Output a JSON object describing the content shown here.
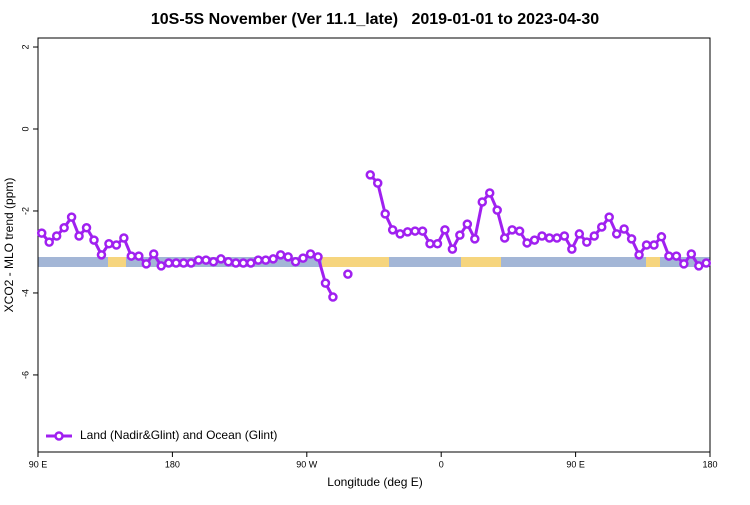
{
  "chart_data": {
    "type": "line",
    "title": "10S-5S November (Ver 11.1_late)   2019-01-01 to 2023-04-30",
    "x_label": "Longitude (deg E)",
    "y_label": "XCO2 - MLO trend (ppm)",
    "x": [
      92.5,
      97.5,
      102.5,
      107.5,
      112.5,
      117.5,
      122.5,
      127.5,
      132.5,
      137.5,
      142.5,
      147.5,
      152.5,
      157.5,
      162.5,
      167.5,
      172.5,
      177.5,
      182.5,
      187.5,
      192.5,
      197.5,
      202.5,
      207.5,
      212.5,
      217.5,
      222.5,
      227.5,
      232.5,
      237.5,
      242.5,
      247.5,
      252.5,
      257.5,
      262.5,
      267.5,
      272.5,
      277.5,
      282.5,
      287.5,
      292.5,
      297.5,
      302.5,
      307.5,
      312.5,
      317.5,
      322.5,
      327.5,
      332.5,
      337.5,
      342.5,
      347.5,
      352.5,
      357.5,
      362.5,
      367.5,
      372.5,
      377.5,
      382.5,
      387.5,
      392.5,
      397.5,
      402.5,
      407.5,
      412.5,
      417.5,
      422.5,
      427.5,
      432.5,
      437.5,
      442.5,
      447.5,
      452.5,
      457.5,
      462.5,
      467.5,
      472.5,
      477.5,
      482.5,
      487.5,
      492.5,
      497.5,
      502.5,
      507.5,
      512.5,
      517.5,
      522.5,
      527.5,
      532.5,
      537.5
    ],
    "series": [
      {
        "name": "Land (Nadir&Glint) and Ocean (Glint)",
        "color": "#a020f0",
        "values": [
          -2.54,
          -2.76,
          -2.61,
          -2.41,
          -2.15,
          -2.61,
          -2.41,
          -2.71,
          -3.07,
          -2.8,
          -2.83,
          -2.66,
          -3.1,
          -3.1,
          -3.29,
          -3.05,
          -3.34,
          -3.27,
          -3.27,
          -3.27,
          -3.27,
          -3.2,
          -3.2,
          -3.24,
          -3.17,
          -3.24,
          -3.27,
          -3.27,
          -3.27,
          -3.2,
          -3.2,
          -3.17,
          -3.07,
          -3.12,
          -3.24,
          -3.15,
          -3.05,
          -3.12,
          -3.76,
          -4.1,
          null,
          -3.54,
          null,
          null,
          -1.12,
          -1.32,
          -2.07,
          -2.46,
          -2.56,
          -2.51,
          -2.49,
          -2.49,
          -2.8,
          -2.8,
          -2.46,
          -2.93,
          -2.59,
          -2.32,
          -2.68,
          -1.78,
          -1.56,
          -1.98,
          -2.66,
          -2.46,
          -2.49,
          -2.78,
          -2.71,
          -2.61,
          -2.66,
          -2.66,
          -2.61,
          -2.93,
          -2.56,
          -2.76,
          -2.61,
          -2.39,
          -2.15,
          -2.56,
          -2.44,
          -2.68,
          -3.07,
          -2.83,
          -2.83,
          -2.63,
          -3.1,
          -3.1,
          -3.29,
          -3.05,
          -3.34,
          -3.27
        ]
      }
    ],
    "xlim": [
      90,
      540
    ],
    "xticks": [
      {
        "value": 90,
        "label": "90 E"
      },
      180,
      {
        "value": 270,
        "label": "90 W"
      },
      {
        "value": 360,
        "label": "0"
      },
      {
        "value": 450,
        "label": "90 E"
      },
      {
        "value": 540,
        "label": "180"
      }
    ],
    "ylim": [
      -7.88,
      2.22
    ],
    "yticks": [
      2,
      0,
      -2,
      -4,
      -6
    ],
    "legend": "bottom-left"
  }
}
